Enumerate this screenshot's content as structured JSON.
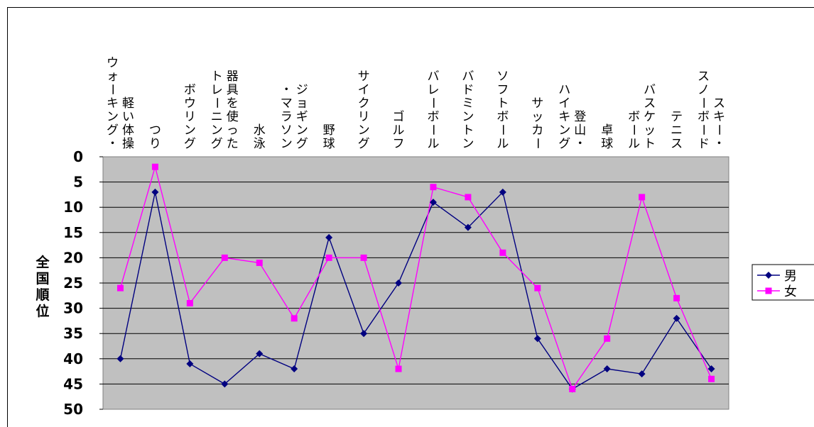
{
  "chart_data": {
    "type": "line",
    "title": "",
    "xlabel": "",
    "ylabel": "全国順位",
    "ylim": [
      0,
      50
    ],
    "y_reversed": true,
    "yticks": [
      "0",
      "5",
      "10",
      "15",
      "20",
      "25",
      "30",
      "35",
      "40",
      "45",
      "50"
    ],
    "grid": true,
    "plot_background": "#c0c0c0",
    "legend_position": "right",
    "categories": [
      "軽い体操\nウォーキング・",
      "つり",
      "ボウリング",
      "器具を使った\nトレーニング",
      "水泳",
      "ジョギング\n・マラソン",
      "野球",
      "サイクリング",
      "ゴルフ",
      "バレーボール",
      "バドミントン",
      "ソフトボール",
      "サッカー",
      "登山・\nハイキング",
      "卓球",
      "バスケット\nボール",
      "テニス",
      "スキー・\nスノーボード"
    ],
    "series": [
      {
        "name": "男",
        "color": "#000080",
        "marker": "diamond",
        "values": [
          40,
          7,
          41,
          45,
          39,
          42,
          16,
          35,
          25,
          9,
          14,
          7,
          36,
          46,
          42,
          43,
          32,
          42
        ]
      },
      {
        "name": "女",
        "color": "#ff00ff",
        "marker": "square",
        "values": [
          26,
          2,
          29,
          20,
          21,
          32,
          20,
          20,
          42,
          6,
          8,
          19,
          26,
          46,
          36,
          8,
          28,
          44
        ]
      }
    ]
  }
}
